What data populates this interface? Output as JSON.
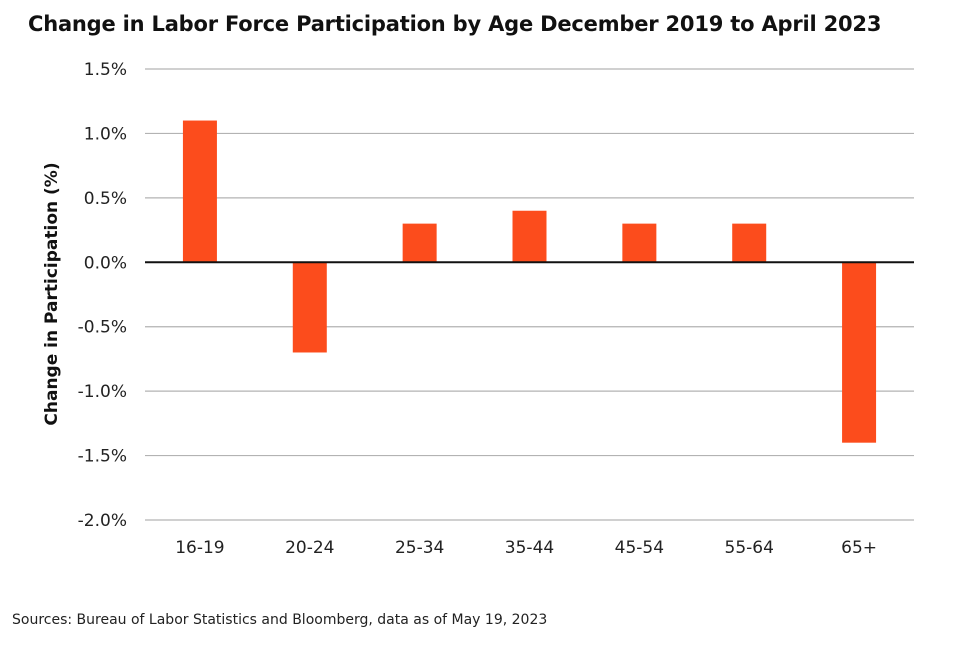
{
  "chart_data": {
    "type": "bar",
    "title": "Change in Labor Force Participation by Age December 2019 to April 2023",
    "xlabel": "",
    "ylabel": "Change in Participation (%)",
    "categories": [
      "16-19",
      "20-24",
      "25-34",
      "35-44",
      "45-54",
      "55-64",
      "65+"
    ],
    "values": [
      1.1,
      -0.7,
      0.3,
      0.4,
      0.3,
      0.3,
      -1.4
    ],
    "ylim": [
      -2.0,
      1.5
    ],
    "yticks": [
      1.5,
      1.0,
      0.5,
      0.0,
      -0.5,
      -1.0,
      -1.5,
      -2.0
    ],
    "ytick_labels": [
      "1.5%",
      "1.0%",
      "0.5%",
      "0.0%",
      "-0.5%",
      "-1.0%",
      "-1.5%",
      "-2.0%"
    ],
    "grid": true,
    "legend": "none",
    "bar_color": "#fc4c1c",
    "source": "Sources: Bureau of Labor Statistics and Bloomberg, data as of May 19, 2023"
  }
}
